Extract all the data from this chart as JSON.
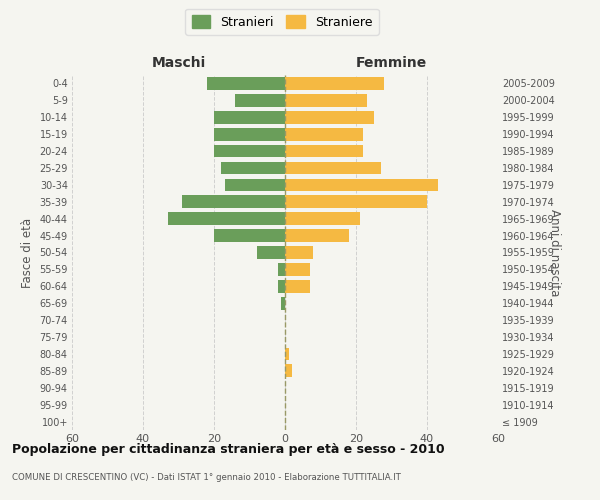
{
  "age_groups": [
    "100+",
    "95-99",
    "90-94",
    "85-89",
    "80-84",
    "75-79",
    "70-74",
    "65-69",
    "60-64",
    "55-59",
    "50-54",
    "45-49",
    "40-44",
    "35-39",
    "30-34",
    "25-29",
    "20-24",
    "15-19",
    "10-14",
    "5-9",
    "0-4"
  ],
  "birth_years": [
    "≤ 1909",
    "1910-1914",
    "1915-1919",
    "1920-1924",
    "1925-1929",
    "1930-1934",
    "1935-1939",
    "1940-1944",
    "1945-1949",
    "1950-1954",
    "1955-1959",
    "1960-1964",
    "1965-1969",
    "1970-1974",
    "1975-1979",
    "1980-1984",
    "1985-1989",
    "1990-1994",
    "1995-1999",
    "2000-2004",
    "2005-2009"
  ],
  "maschi": [
    0,
    0,
    0,
    0,
    0,
    0,
    0,
    1,
    2,
    2,
    8,
    20,
    33,
    29,
    17,
    18,
    20,
    20,
    20,
    14,
    22
  ],
  "femmine": [
    0,
    0,
    0,
    2,
    1,
    0,
    0,
    0,
    7,
    7,
    8,
    18,
    21,
    40,
    43,
    27,
    22,
    22,
    25,
    23,
    28
  ],
  "maschi_color": "#6a9e5a",
  "femmine_color": "#f5b942",
  "background_color": "#f5f5f0",
  "grid_color": "#cccccc",
  "title": "Popolazione per cittadinanza straniera per età e sesso - 2010",
  "subtitle": "COMUNE DI CRESCENTINO (VC) - Dati ISTAT 1° gennaio 2010 - Elaborazione TUTTITALIA.IT",
  "xlabel_left": "Maschi",
  "xlabel_right": "Femmine",
  "ylabel_left": "Fasce di età",
  "ylabel_right": "Anni di nascita",
  "legend_maschi": "Stranieri",
  "legend_femmine": "Straniere",
  "xlim": 60,
  "xticks": [
    -60,
    -40,
    -20,
    0,
    20,
    40,
    60
  ]
}
